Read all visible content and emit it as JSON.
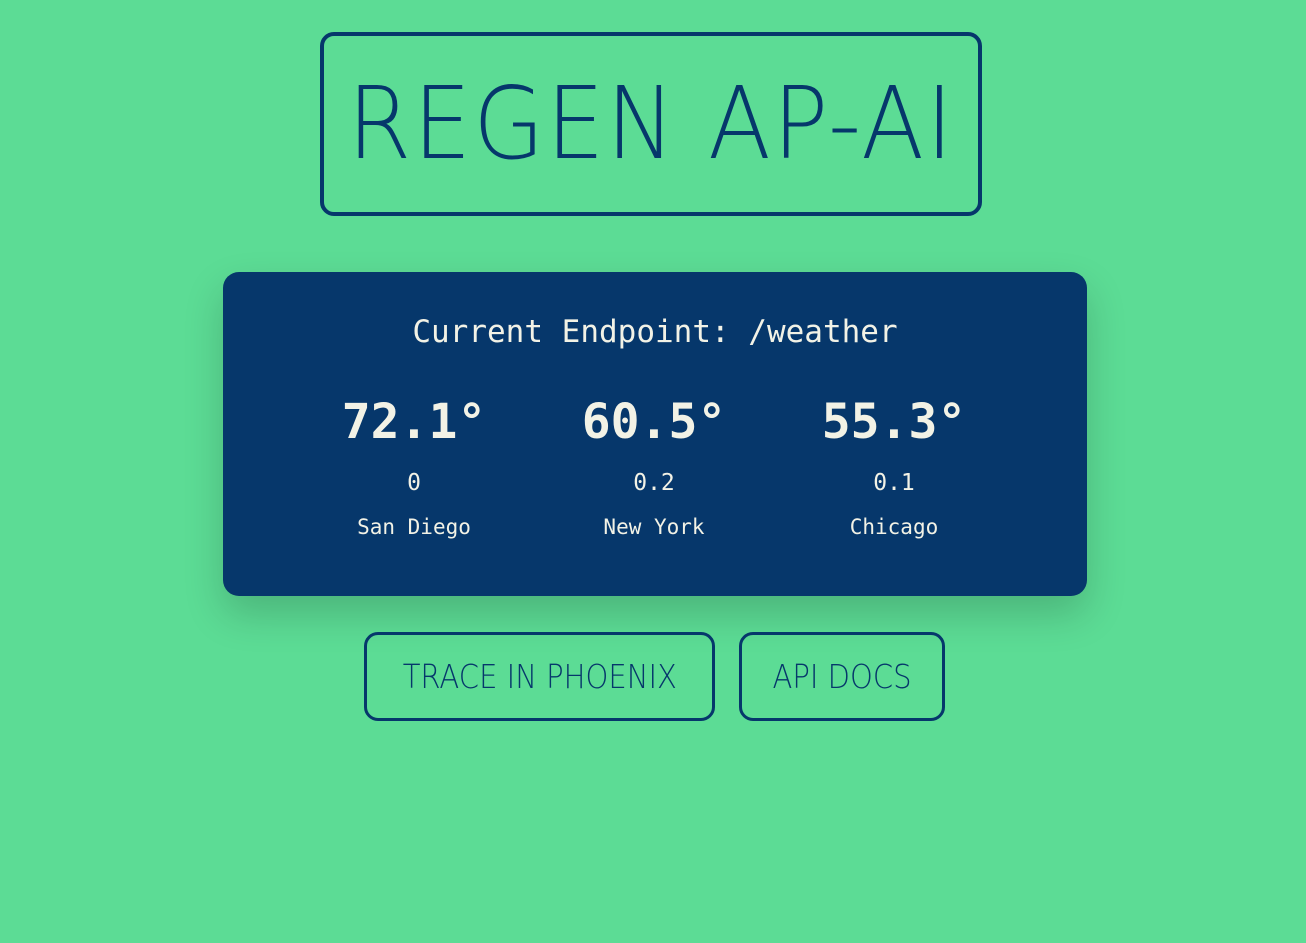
{
  "header": {
    "title": "REGEN AP-AI"
  },
  "weather": {
    "endpoint_label": "Current Endpoint: /weather",
    "cities": [
      {
        "temperature": "72.1°",
        "precipitation": "0",
        "name": "San Diego"
      },
      {
        "temperature": "60.5°",
        "precipitation": "0.2",
        "name": "New York"
      },
      {
        "temperature": "55.3°",
        "precipitation": "0.1",
        "name": "Chicago"
      }
    ]
  },
  "actions": {
    "trace_label": "TRACE IN PHOENIX",
    "docs_label": "API DOCS"
  },
  "colors": {
    "background": "#5cdc95",
    "primary": "#06376b",
    "card_text": "#f2f2e6"
  }
}
